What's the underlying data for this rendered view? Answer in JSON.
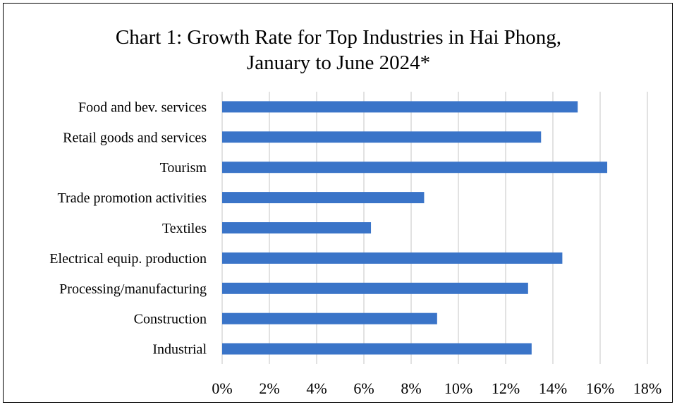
{
  "chart_data": {
    "type": "bar",
    "orientation": "horizontal",
    "title_line1": "Chart 1: Growth Rate for Top Industries in Hai Phong,",
    "title_line2": "January to June 2024*",
    "xlim": [
      0,
      18
    ],
    "xticks": [
      "0%",
      "2%",
      "4%",
      "6%",
      "8%",
      "10%",
      "12%",
      "14%",
      "16%",
      "18%"
    ],
    "grid": "vertical",
    "bar_color": "#3A74C8",
    "categories": [
      "Food and bev. services",
      "Retail goods and services",
      "Tourism",
      "Trade promotion activities",
      "Textiles",
      "Electrical equip. production",
      "Processing/manufacturing",
      "Construction",
      "Industrial"
    ],
    "values": [
      15.05,
      13.5,
      16.3,
      8.55,
      6.3,
      14.4,
      12.95,
      9.1,
      13.1
    ]
  }
}
